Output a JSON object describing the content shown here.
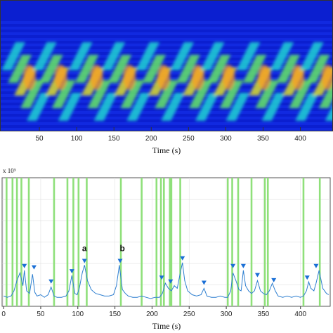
{
  "chart_data": [
    {
      "type": "heatmap",
      "xlabel": "Time (s)",
      "x_ticks": [
        50,
        100,
        150,
        200,
        250,
        300,
        350,
        400
      ],
      "xlim": [
        0,
        440
      ],
      "grid": false,
      "colormap": [
        "#0a14b4",
        "#1e3cff",
        "#1e8cff",
        "#1ed2d2",
        "#64e664",
        "#dcdc28",
        "#ff9b1e"
      ],
      "bands_description": "diagonal high-intensity streaks repeating roughly every 90 s",
      "streak_starts_s": [
        18,
        60,
        108,
        152,
        198,
        244,
        285,
        333,
        378,
        418
      ]
    },
    {
      "type": "line",
      "xlabel": "Time (s)",
      "y_exponent_label": "x 10⁵",
      "x_ticks": [
        0,
        50,
        100,
        150,
        200,
        250,
        300,
        350,
        400
      ],
      "xlim": [
        -2,
        440
      ],
      "ylim": [
        0,
        1
      ],
      "grid": true,
      "series": [
        {
          "color": "#2e7fd0",
          "x": [
            0,
            5,
            10,
            14,
            18,
            22,
            26,
            28,
            31,
            35,
            39,
            42,
            45,
            50,
            55,
            60,
            64,
            68,
            72,
            78,
            84,
            88,
            92,
            96,
            99,
            102,
            106,
            109,
            113,
            118,
            124,
            130,
            136,
            142,
            148,
            152,
            156,
            160,
            164,
            168,
            174,
            180,
            186,
            192,
            198,
            204,
            210,
            214,
            218,
            222,
            226,
            230,
            234,
            238,
            241,
            244,
            248,
            254,
            260,
            266,
            270,
            274,
            280,
            286,
            292,
            298,
            302,
            306,
            309,
            313,
            317,
            320,
            323,
            326,
            330,
            334,
            338,
            342,
            346,
            350,
            354,
            358,
            362,
            366,
            370,
            376,
            382,
            388,
            394,
            400,
            404,
            408,
            411,
            414,
            418,
            421,
            425,
            430,
            435,
            438
          ],
          "y": [
            0.08,
            0.07,
            0.08,
            0.12,
            0.2,
            0.26,
            0.16,
            0.28,
            0.12,
            0.1,
            0.25,
            0.11,
            0.08,
            0.09,
            0.07,
            0.09,
            0.15,
            0.08,
            0.07,
            0.07,
            0.08,
            0.12,
            0.24,
            0.1,
            0.09,
            0.14,
            0.26,
            0.32,
            0.2,
            0.13,
            0.1,
            0.09,
            0.08,
            0.08,
            0.09,
            0.16,
            0.32,
            0.13,
            0.1,
            0.08,
            0.07,
            0.07,
            0.08,
            0.07,
            0.06,
            0.07,
            0.07,
            0.1,
            0.18,
            0.14,
            0.12,
            0.16,
            0.14,
            0.26,
            0.34,
            0.2,
            0.12,
            0.09,
            0.08,
            0.09,
            0.14,
            0.08,
            0.07,
            0.07,
            0.08,
            0.07,
            0.07,
            0.12,
            0.26,
            0.2,
            0.13,
            0.12,
            0.28,
            0.16,
            0.12,
            0.1,
            0.12,
            0.2,
            0.12,
            0.1,
            0.09,
            0.12,
            0.18,
            0.12,
            0.08,
            0.07,
            0.08,
            0.07,
            0.08,
            0.07,
            0.08,
            0.12,
            0.19,
            0.14,
            0.12,
            0.18,
            0.28,
            0.14,
            0.1,
            0.09
          ]
        }
      ],
      "peaks": {
        "marker_color": "#1a6fd6",
        "x": [
          28,
          41,
          64,
          92,
          109,
          157,
          213,
          225,
          241,
          270,
          309,
          323,
          342,
          364,
          409,
          421
        ],
        "y": [
          0.28,
          0.27,
          0.16,
          0.24,
          0.32,
          0.32,
          0.19,
          0.16,
          0.34,
          0.15,
          0.28,
          0.28,
          0.21,
          0.17,
          0.19,
          0.28
        ]
      },
      "event_lines": {
        "color": "#8fe07a",
        "x": [
          4,
          12,
          18,
          24,
          34,
          68,
          86,
          94,
          101,
          112,
          158,
          186,
          206,
          212,
          216,
          224,
          226,
          238,
          302,
          308,
          316,
          334,
          352,
          356,
          404,
          426
        ]
      },
      "annotations": [
        {
          "text": "a",
          "x": 109,
          "y": 0.43
        },
        {
          "text": "b",
          "x": 160,
          "y": 0.43
        }
      ]
    }
  ]
}
